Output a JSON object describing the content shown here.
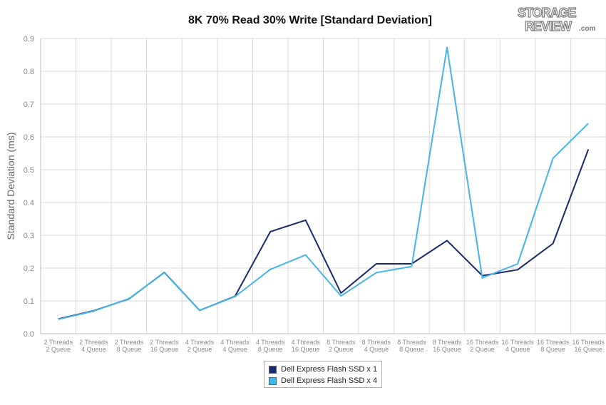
{
  "chart_data": {
    "type": "line",
    "title": "8K 70% Read 30% Write [Standard Deviation]",
    "ylabel": "Standard Deviation (ms)",
    "xlabel": "",
    "ylim": [
      0,
      0.9
    ],
    "yticks": [
      "0.0",
      "0.1",
      "0.2",
      "0.3",
      "0.4",
      "0.5",
      "0.6",
      "0.7",
      "0.8",
      "0.9"
    ],
    "grid": true,
    "legend_position": "bottom",
    "categories": [
      [
        "2 Threads",
        "2 Queue"
      ],
      [
        "2 Threads",
        "4 Queue"
      ],
      [
        "2 Threads",
        "8 Queue"
      ],
      [
        "2 Threads",
        "16 Queue"
      ],
      [
        "4 Threads",
        "2 Queue"
      ],
      [
        "4 Threads",
        "4 Queue"
      ],
      [
        "4 Threads",
        "8 Queue"
      ],
      [
        "4 Threads",
        "16 Queue"
      ],
      [
        "8 Threads",
        "2 Queue"
      ],
      [
        "8 Threads",
        "4 Queue"
      ],
      [
        "8 Threads",
        "8 Queue"
      ],
      [
        "8 Threads",
        "16 Queue"
      ],
      [
        "16 Threads",
        "2 Queue"
      ],
      [
        "16 Threads",
        "4 Queue"
      ],
      [
        "16 Threads",
        "8 Queue"
      ],
      [
        "16 Threads",
        "16 Queue"
      ]
    ],
    "series": [
      {
        "name": "Dell Express Flash SSD x 1",
        "color": "#1a2a6c",
        "values": [
          0.045,
          0.07,
          0.106,
          0.187,
          0.071,
          0.114,
          0.311,
          0.346,
          0.124,
          0.213,
          0.213,
          0.284,
          0.177,
          0.195,
          0.275,
          0.562
        ]
      },
      {
        "name": "Dell Express Flash SSD x 4",
        "color": "#45b4e8",
        "values": [
          0.044,
          0.069,
          0.107,
          0.186,
          0.071,
          0.113,
          0.196,
          0.24,
          0.115,
          0.186,
          0.205,
          0.873,
          0.17,
          0.213,
          0.535,
          0.641
        ]
      }
    ]
  },
  "logo": {
    "line1": "STORAGE",
    "line2": "REVIEW",
    "suffix": ".com"
  }
}
